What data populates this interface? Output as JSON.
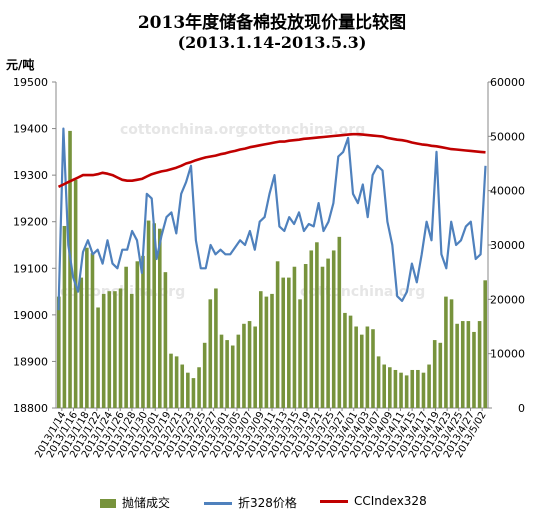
{
  "chart_data": {
    "type": "bar+line",
    "title": "2013年度储备棉投放现价量比较图",
    "subtitle": "(2013.1.14-2013.5.3)",
    "unit_label": "元/吨",
    "left_axis": {
      "min": 18800,
      "max": 19500,
      "step": 100,
      "ticks": [
        "18800",
        "18900",
        "19000",
        "19100",
        "19200",
        "19300",
        "19400",
        "19500"
      ]
    },
    "right_axis": {
      "min": 0,
      "max": 60000,
      "step": 10000,
      "ticks": [
        "0",
        "10000",
        "20000",
        "30000",
        "40000",
        "50000",
        "60000"
      ]
    },
    "x_tick_labels": [
      "2013/1/14",
      "2013/1/16",
      "2013/1/18",
      "2013/1/22",
      "2013/1/24",
      "2013/1/26",
      "2013/1/28",
      "2013/1/30",
      "2013/2/01",
      "2013/2/19",
      "2013/2/21",
      "2013/2/23",
      "2013/2/25",
      "2013/2/27",
      "2013/3/01",
      "2013/3/05",
      "2013/3/07",
      "2013/3/09",
      "2013/3/11",
      "2013/3/13",
      "2013/3/15",
      "2013/3/19",
      "2013/3/21",
      "2013/3/25",
      "2013/3/27",
      "2013/4/01",
      "2013/4/03",
      "2013/4/07",
      "2013/4/09",
      "2013/4/11",
      "2013/4/15",
      "2013/4/17",
      "2013/4/19",
      "2013/4/23",
      "2013/4/25",
      "2013/4/27",
      "2013/5/02"
    ],
    "series": [
      {
        "name": "抛储成交",
        "kind": "bar",
        "axis": "right",
        "color": "#77933c",
        "values": [
          20500,
          33500,
          51000,
          42000,
          24000,
          29500,
          28500,
          18500,
          21000,
          21500,
          21500,
          22000,
          26000,
          21000,
          27000,
          28000,
          34500,
          34000,
          33000,
          25000,
          10000,
          9500,
          8000,
          6500,
          5500,
          7500,
          12000,
          20000,
          22000,
          13500,
          12500,
          11500,
          13500,
          15500,
          16000,
          15000,
          21500,
          20500,
          21000,
          27000,
          24000,
          24000,
          26000,
          20000,
          26500,
          29000,
          30500,
          26000,
          27500,
          29000,
          31500,
          17500,
          17000,
          15000,
          13500,
          15000,
          14500,
          9500,
          8000,
          7500,
          7000,
          6500,
          6000,
          7000,
          7000,
          6500,
          8000,
          12500,
          12000,
          20500,
          20000,
          15500,
          16000,
          16000,
          14000,
          16000,
          23500
        ]
      },
      {
        "name": "折328价格",
        "kind": "line",
        "axis": "left",
        "color": "#4f81bd",
        "values": [
          19010,
          19400,
          19150,
          19080,
          19050,
          19135,
          19160,
          19130,
          19140,
          19110,
          19160,
          19110,
          19100,
          19140,
          19140,
          19180,
          19160,
          19090,
          19260,
          19250,
          19120,
          19170,
          19210,
          19220,
          19175,
          19260,
          19285,
          19320,
          19160,
          19100,
          19100,
          19150,
          19130,
          19140,
          19130,
          19130,
          19145,
          19160,
          19150,
          19180,
          19140,
          19200,
          19210,
          19260,
          19300,
          19190,
          19180,
          19210,
          19195,
          19220,
          19180,
          19195,
          19190,
          19240,
          19180,
          19200,
          19240,
          19340,
          19350,
          19380,
          19260,
          19240,
          19280,
          19210,
          19300,
          19320,
          19310,
          19200,
          19150,
          19040,
          19030,
          19050,
          19110,
          19070,
          19130,
          19200,
          19160,
          19350,
          19130,
          19100,
          19200,
          19150,
          19160,
          19190,
          19200,
          19120,
          19130,
          19320
        ]
      },
      {
        "name": "CCIndex328",
        "kind": "line",
        "axis": "left",
        "color": "#c00000",
        "values": [
          19275,
          19280,
          19285,
          19290,
          19295,
          19300,
          19300,
          19300,
          19302,
          19305,
          19303,
          19300,
          19295,
          19290,
          19288,
          19288,
          19290,
          19292,
          19297,
          19302,
          19305,
          19308,
          19310,
          19313,
          19316,
          19320,
          19325,
          19328,
          19332,
          19335,
          19338,
          19340,
          19342,
          19345,
          19347,
          19350,
          19352,
          19355,
          19357,
          19360,
          19362,
          19364,
          19366,
          19368,
          19370,
          19372,
          19372,
          19374,
          19375,
          19376,
          19378,
          19379,
          19380,
          19381,
          19382,
          19383,
          19384,
          19385,
          19386,
          19387,
          19388,
          19388,
          19387,
          19386,
          19385,
          19384,
          19383,
          19380,
          19378,
          19376,
          19375,
          19373,
          19370,
          19368,
          19366,
          19365,
          19363,
          19362,
          19360,
          19358,
          19356,
          19355,
          19354,
          19353,
          19352,
          19351,
          19350,
          19349
        ]
      }
    ],
    "legend": [
      "抛储成交",
      "折328价格",
      "CCIndex328"
    ],
    "legend_position": "bottom",
    "grid": false,
    "watermark_text": "cottonchina.org"
  }
}
